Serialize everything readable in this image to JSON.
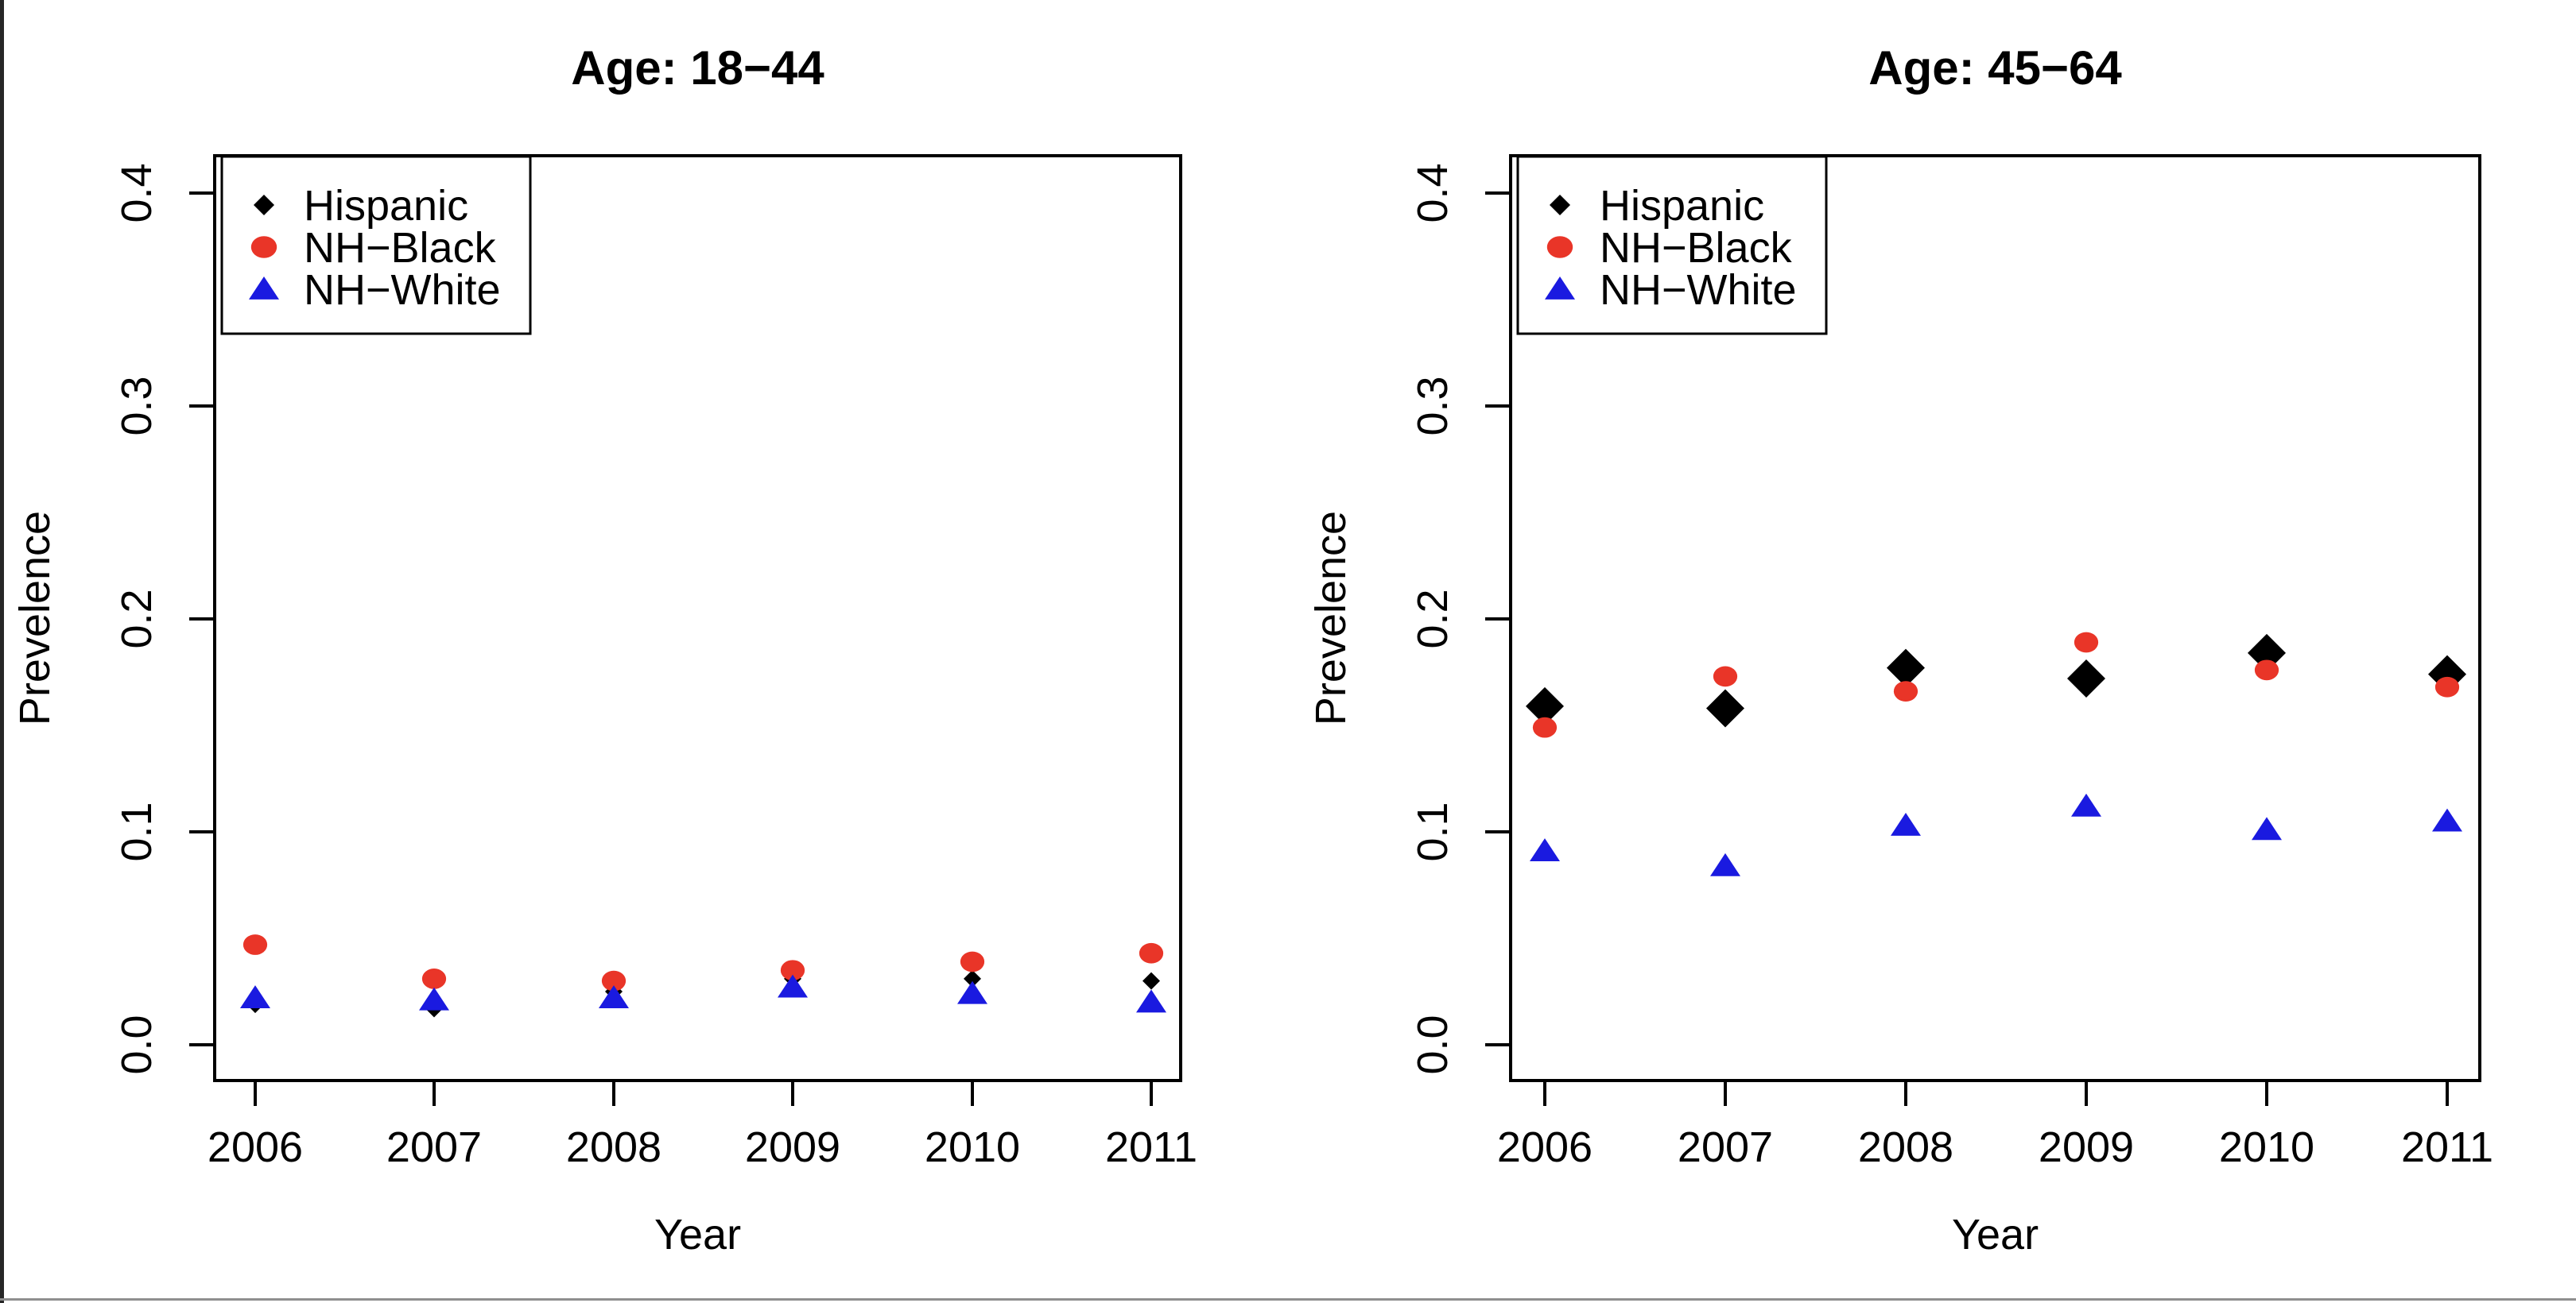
{
  "figure": {
    "background": "#ffffff",
    "frame_left_color": "#262626",
    "frame_bottom_color": "#8f8f8f"
  },
  "chart_data": [
    {
      "type": "scatter",
      "title": "Age: 18−44",
      "xlabel": "Year",
      "ylabel": "Prevelence",
      "x": [
        2006,
        2007,
        2008,
        2009,
        2010,
        2011
      ],
      "xtick_labels": [
        "2006",
        "2007",
        "2008",
        "2009",
        "2010",
        "2011"
      ],
      "ylim": [
        0.0,
        0.4
      ],
      "yticks": [
        0.0,
        0.1,
        0.2,
        0.3,
        0.4
      ],
      "ytick_labels": [
        "0.0",
        "0.1",
        "0.2",
        "0.3",
        "0.4"
      ],
      "grid": false,
      "legend_position": "top-left",
      "legend_entries": [
        "Hispanic",
        "NH−Black",
        "NH−White"
      ],
      "series": [
        {
          "name": "Hispanic",
          "marker": "diamond",
          "color": "#000000",
          "values": [
            0.019,
            0.017,
            0.025,
            0.031,
            0.031,
            0.03
          ]
        },
        {
          "name": "NH−Black",
          "marker": "circle",
          "color": "#E93528",
          "values": [
            0.047,
            0.031,
            0.03,
            0.035,
            0.039,
            0.043
          ]
        },
        {
          "name": "NH−White",
          "marker": "triangle",
          "color": "#1A1AE0",
          "values": [
            0.022,
            0.021,
            0.022,
            0.027,
            0.024,
            0.02
          ]
        }
      ]
    },
    {
      "type": "scatter",
      "title": "Age: 45−64",
      "xlabel": "Year",
      "ylabel": "Prevelence",
      "x": [
        2006,
        2007,
        2008,
        2009,
        2010,
        2011
      ],
      "xtick_labels": [
        "2006",
        "2007",
        "2008",
        "2009",
        "2010",
        "2011"
      ],
      "ylim": [
        0.0,
        0.4
      ],
      "yticks": [
        0.0,
        0.1,
        0.2,
        0.3,
        0.4
      ],
      "ytick_labels": [
        "0.0",
        "0.1",
        "0.2",
        "0.3",
        "0.4"
      ],
      "grid": false,
      "legend_position": "top-left",
      "legend_entries": [
        "Hispanic",
        "NH−Black",
        "NH−White"
      ],
      "series": [
        {
          "name": "Hispanic",
          "marker": "diamond",
          "color": "#000000",
          "values": [
            0.159,
            0.158,
            0.177,
            0.172,
            0.184,
            0.174
          ]
        },
        {
          "name": "NH−Black",
          "marker": "circle",
          "color": "#E93528",
          "values": [
            0.149,
            0.173,
            0.166,
            0.189,
            0.176,
            0.168
          ]
        },
        {
          "name": "NH−White",
          "marker": "triangle",
          "color": "#1A1AE0",
          "values": [
            0.091,
            0.084,
            0.103,
            0.112,
            0.101,
            0.105
          ]
        }
      ]
    }
  ]
}
